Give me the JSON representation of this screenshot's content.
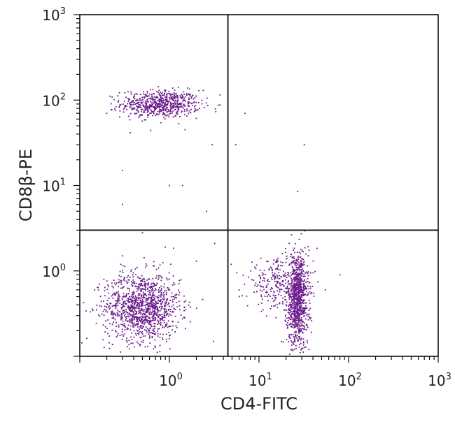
{
  "chart_data": {
    "type": "scatter",
    "title": "",
    "xlabel": "CD4-FITC",
    "ylabel": "CD8β-PE",
    "x_scale": "log",
    "y_scale": "log",
    "xlim": [
      0.1,
      1000
    ],
    "ylim": [
      0.1,
      1000
    ],
    "grid": false,
    "point_color": "#6a1b8a",
    "quadrant_gates": {
      "x": 4.5,
      "y": 3.0
    },
    "x_ticks": [
      {
        "base": "10",
        "exp": "0",
        "value": 1
      },
      {
        "base": "10",
        "exp": "1",
        "value": 10
      },
      {
        "base": "10",
        "exp": "2",
        "value": 100
      },
      {
        "base": "10",
        "exp": "3",
        "value": 1000
      }
    ],
    "y_ticks": [
      {
        "base": "10",
        "exp": "0",
        "value": 1
      },
      {
        "base": "10",
        "exp": "1",
        "value": 10
      },
      {
        "base": "10",
        "exp": "2",
        "value": 100
      },
      {
        "base": "10",
        "exp": "3",
        "value": 1000
      }
    ],
    "populations": [
      {
        "center": [
          0.8,
          90
        ],
        "spread_log": [
          0.22,
          0.08
        ],
        "count": 650
      },
      {
        "center": [
          0.5,
          0.38
        ],
        "spread_log": [
          0.21,
          0.2
        ],
        "count": 1200
      },
      {
        "center": [
          27,
          0.45
        ],
        "spread_log": [
          0.06,
          0.28
        ],
        "count": 900
      },
      {
        "center": [
          17,
          0.7
        ],
        "spread_log": [
          0.18,
          0.14
        ],
        "count": 300
      }
    ],
    "outliers": [
      [
        7,
        70
      ],
      [
        5.5,
        30
      ],
      [
        32,
        30
      ],
      [
        27,
        8.5
      ],
      [
        0.3,
        6
      ],
      [
        2.6,
        5
      ],
      [
        1.0,
        10
      ],
      [
        3.2,
        2.1
      ],
      [
        0.9,
        1.9
      ],
      [
        0.5,
        2.8
      ],
      [
        3.0,
        30
      ],
      [
        0.3,
        15
      ],
      [
        1.4,
        10
      ],
      [
        2.0,
        1.3
      ],
      [
        0.3,
        1.5
      ],
      [
        80,
        0.9
      ],
      [
        55,
        0.6
      ],
      [
        6,
        0.6
      ],
      [
        0.8,
        0.25
      ],
      [
        3.1,
        0.15
      ],
      [
        0.25,
        0.2
      ],
      [
        36,
        0.12
      ],
      [
        1.5,
        45
      ],
      [
        0.2,
        70
      ]
    ]
  }
}
